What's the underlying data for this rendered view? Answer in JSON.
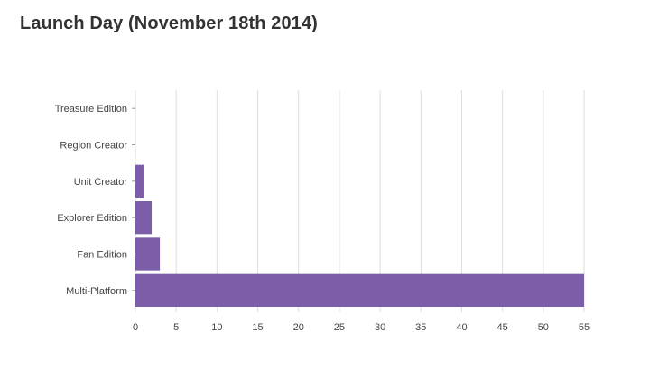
{
  "chart_data": {
    "type": "bar",
    "orientation": "horizontal",
    "title": "Launch Day (November 18th 2014)",
    "xlabel": "",
    "ylabel": "",
    "categories": [
      "Treasure Edition",
      "Region Creator",
      "Unit Creator",
      "Explorer Edition",
      "Fan Edition",
      "Multi-Platform"
    ],
    "values": [
      0,
      0,
      1,
      2,
      3,
      55
    ],
    "xlim": [
      0,
      55
    ],
    "xticks": [
      0,
      5,
      10,
      15,
      20,
      25,
      30,
      35,
      40,
      45,
      50,
      55
    ],
    "grid": true,
    "legend": "none",
    "bar_color": "#7b5ea7",
    "grid_color": "#dddddd"
  }
}
